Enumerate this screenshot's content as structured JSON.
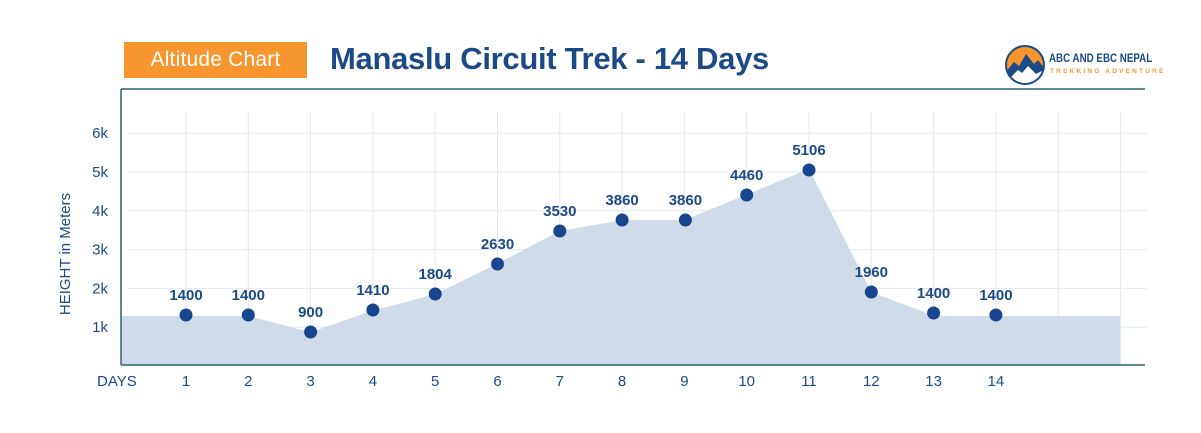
{
  "header": {
    "badge_label": "Altitude Chart",
    "title": "Manaslu Circuit Trek - 14 Days"
  },
  "logo": {
    "name_line1": "ABC AND EBC NEPAL",
    "name_line2": "TREKKING ADVENTURE"
  },
  "colors": {
    "accent_orange": "#f7962f",
    "brand_blue": "#1c4a86",
    "point_blue": "#17468f",
    "area_fill": "#cfdbe8",
    "grid": "#e3e8f2",
    "frame": "#2d6469"
  },
  "chart_data": {
    "type": "area",
    "title": "Manaslu Circuit Trek - 14 Days",
    "subtitle": "Altitude Chart",
    "xlabel": "DAYS",
    "ylabel": "HEIGHT in Meters",
    "categories": [
      "1",
      "2",
      "3",
      "4",
      "5",
      "6",
      "7",
      "8",
      "9",
      "10",
      "11",
      "12",
      "13",
      "14"
    ],
    "x": [
      1,
      2,
      3,
      4,
      5,
      6,
      7,
      8,
      9,
      10,
      11,
      12,
      13,
      14
    ],
    "values": [
      1400,
      1400,
      900,
      1410,
      1804,
      2630,
      3530,
      3860,
      3860,
      4460,
      5106,
      1960,
      1400,
      1400
    ],
    "y_ticks": [
      "1k",
      "2k",
      "3k",
      "4k",
      "5k",
      "6k"
    ],
    "ylim": [
      0,
      7000
    ],
    "grid": true,
    "legend": null,
    "annotations": "data labels above each point"
  }
}
